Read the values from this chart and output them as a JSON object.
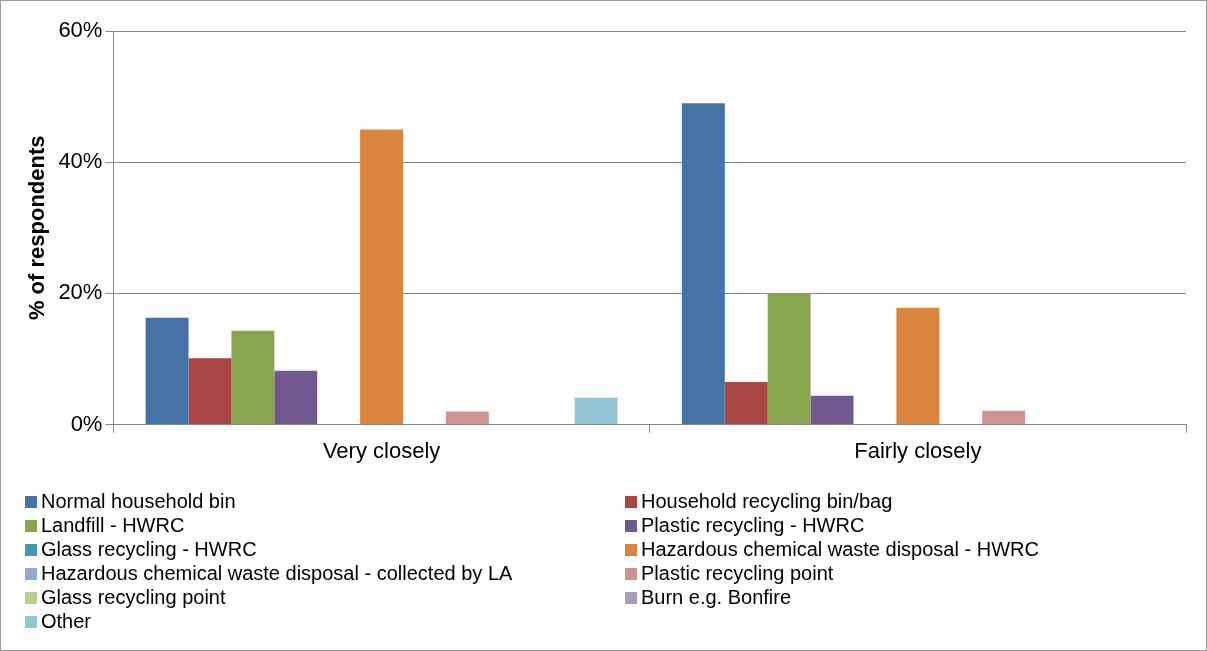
{
  "chart_data": {
    "type": "bar",
    "ylabel": "% of respondents",
    "categories": [
      "Very closely",
      "Fairly closely"
    ],
    "series": [
      {
        "name": "Normal household bin",
        "color": "#4572a7",
        "values": [
          16.3,
          49
        ]
      },
      {
        "name": "Household recycling bin/bag",
        "color": "#aa4643",
        "values": [
          10.1,
          6.5
        ]
      },
      {
        "name": "Landfill - HWRC",
        "color": "#89a54e",
        "values": [
          14.3,
          20
        ]
      },
      {
        "name": "Plastic recycling - HWRC",
        "color": "#71588f",
        "values": [
          8.2,
          4.4
        ]
      },
      {
        "name": "Glass recycling - HWRC",
        "color": "#4198af",
        "values": [
          0,
          0
        ]
      },
      {
        "name": "Hazardous chemical waste disposal - HWRC",
        "color": "#db843d",
        "values": [
          45,
          17.8
        ]
      },
      {
        "name": "Hazardous chemical waste disposal - collected by LA",
        "color": "#93a9cf",
        "values": [
          0,
          0
        ]
      },
      {
        "name": "Plastic recycling point",
        "color": "#d19392",
        "values": [
          2,
          2.1
        ]
      },
      {
        "name": "Glass recycling point",
        "color": "#b9cd96",
        "values": [
          0,
          0
        ]
      },
      {
        "name": "Burn e.g. Bonfire",
        "color": "#a99bbd",
        "values": [
          0,
          0
        ]
      },
      {
        "name": "Other",
        "color": "#92c5d5",
        "values": [
          4.1,
          0
        ]
      }
    ],
    "ylim": [
      0,
      60
    ],
    "yticks": [
      {
        "value": 0,
        "label": "0%"
      },
      {
        "value": 20,
        "label": "20%"
      },
      {
        "value": 40,
        "label": "40%"
      },
      {
        "value": 60,
        "label": "60%"
      }
    ],
    "grid": "y",
    "legend": "bottom"
  }
}
